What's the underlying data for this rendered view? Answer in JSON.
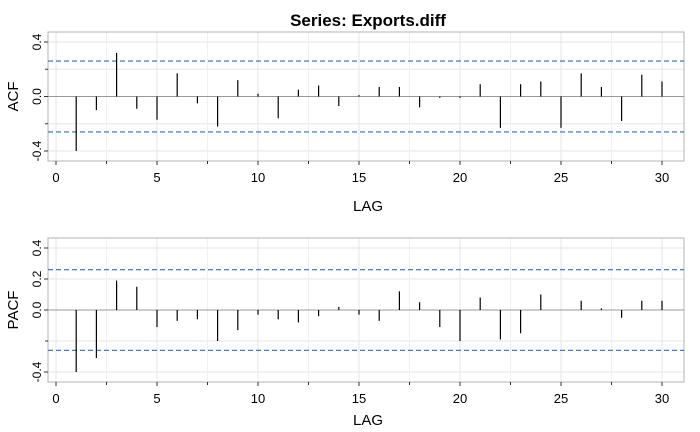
{
  "title": "Series:  Exports.diff",
  "chart_data": [
    {
      "type": "bar",
      "name": "acf",
      "title": "Series:  Exports.diff",
      "xlabel": "LAG",
      "ylabel": "ACF",
      "xlim": [
        0,
        30
      ],
      "ylim": [
        -0.4,
        0.4
      ],
      "yticks": [
        "-0.4",
        "0.0",
        "0.4"
      ],
      "yminor": [
        -0.2,
        0.2
      ],
      "xticks": [
        "0",
        "5",
        "10",
        "15",
        "20",
        "25",
        "30"
      ],
      "grid": true,
      "ci": 0.26,
      "x": [
        1,
        2,
        3,
        4,
        5,
        6,
        7,
        8,
        9,
        10,
        11,
        12,
        13,
        14,
        15,
        16,
        17,
        18,
        19,
        20,
        21,
        22,
        23,
        24,
        25,
        26,
        27,
        28,
        29,
        30
      ],
      "values": [
        -0.4,
        -0.1,
        0.32,
        -0.09,
        -0.17,
        0.17,
        -0.05,
        -0.22,
        0.12,
        0.02,
        -0.16,
        0.05,
        0.08,
        -0.07,
        0.01,
        0.07,
        0.07,
        -0.08,
        -0.01,
        -0.01,
        0.09,
        -0.23,
        0.09,
        0.11,
        -0.23,
        0.17,
        0.07,
        -0.18,
        0.16,
        0.11
      ]
    },
    {
      "type": "bar",
      "name": "pacf",
      "xlabel": "LAG",
      "ylabel": "PACF",
      "xlim": [
        0,
        30
      ],
      "ylim": [
        -0.4,
        0.4
      ],
      "yticks": [
        "-0.4",
        "0.0",
        "0.2",
        "0.4"
      ],
      "yminor": [
        -0.2
      ],
      "xticks": [
        "0",
        "5",
        "10",
        "15",
        "20",
        "25",
        "30"
      ],
      "grid": true,
      "ci": 0.26,
      "x": [
        1,
        2,
        3,
        4,
        5,
        6,
        7,
        8,
        9,
        10,
        11,
        12,
        13,
        14,
        15,
        16,
        17,
        18,
        19,
        20,
        21,
        22,
        23,
        24,
        25,
        26,
        27,
        28,
        29,
        30
      ],
      "values": [
        -0.4,
        -0.31,
        0.19,
        0.15,
        -0.11,
        -0.07,
        -0.06,
        -0.2,
        -0.13,
        -0.03,
        -0.06,
        -0.08,
        -0.04,
        0.02,
        -0.03,
        -0.07,
        0.12,
        0.05,
        -0.11,
        -0.2,
        0.08,
        -0.19,
        -0.15,
        0.1,
        0.0,
        0.06,
        0.01,
        -0.05,
        0.06,
        0.06
      ]
    }
  ],
  "colors": {
    "bar": "#000000",
    "ci_line": "#2b6cb0",
    "zero_line": "#999999",
    "grid": "#e6e6e6",
    "frame": "#b3b3b3",
    "text": "#000000"
  }
}
